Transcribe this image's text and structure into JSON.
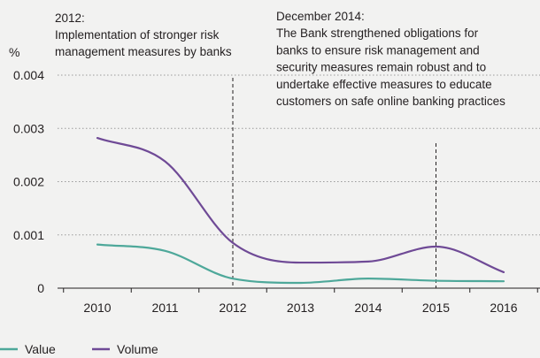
{
  "chart_data": {
    "type": "line",
    "x": [
      2010,
      2011,
      2012,
      2013,
      2014,
      2015,
      2016
    ],
    "ylabel": "%",
    "ylim": [
      0,
      0.004
    ],
    "yticks": [
      0,
      0.001,
      0.002,
      0.003,
      0.004
    ],
    "ytick_labels": [
      "0",
      "0.001",
      "0.002",
      "0.003",
      "0.004"
    ],
    "xtick_labels": [
      "2010",
      "2011",
      "2012",
      "2013",
      "2014",
      "2015",
      "2016"
    ],
    "grid": "horizontal dotted",
    "legend_position": "bottom-left",
    "series": [
      {
        "name": "Value",
        "color": "#4ea89a",
        "values": [
          0.00082,
          0.0007,
          0.00018,
          0.0001,
          0.00018,
          0.00014,
          0.00013
        ]
      },
      {
        "name": "Volume",
        "color": "#6f4a96",
        "values": [
          0.00282,
          0.00238,
          0.00085,
          0.00048,
          0.0005,
          0.00078,
          0.0003
        ]
      }
    ],
    "annotations": [
      {
        "x": 2012,
        "lines": [
          "2012:",
          "Implementation of stronger risk",
          "management measures by banks"
        ]
      },
      {
        "x": 2015,
        "lines": [
          "December 2014:",
          "The Bank strengthened obligations for",
          "banks to ensure risk management and",
          "security measures remain robust and to",
          "undertake effective measures to educate",
          "customers on safe online banking practices"
        ]
      }
    ]
  }
}
